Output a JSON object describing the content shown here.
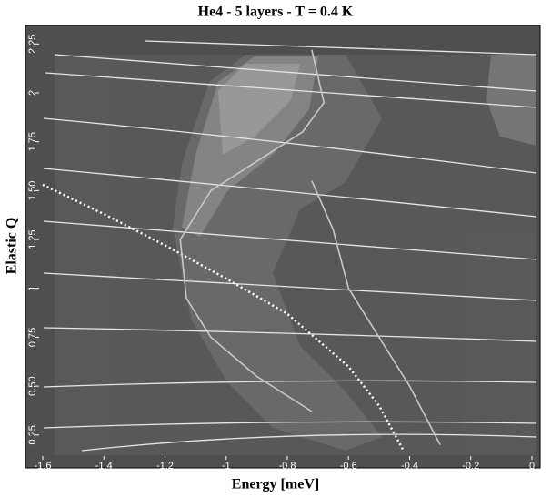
{
  "chart_data": {
    "type": "line",
    "title": "He4 - 5 layers - T = 0.4 K",
    "x_label": "Energy [meV]",
    "y_label": "Elastic Q",
    "xlim": [
      -1.6,
      0
    ],
    "ylim": [
      0.17,
      2.27
    ],
    "xticks": [
      -1.6,
      -1.4,
      -1.2,
      -1,
      -0.8,
      -0.6,
      -0.4,
      -0.2,
      0
    ],
    "yticks": [
      0.25,
      {
        "value": 0.5,
        "label": "0.50"
      },
      0.75,
      1,
      1.25,
      {
        "value": 1.5,
        "label": "1.50"
      },
      1.75,
      2,
      2.25
    ],
    "series": [
      {
        "color": "#ffffff",
        "style": "dotted",
        "x": [
          -1.6,
          -1.4,
          -1.2,
          -1.0,
          -0.8,
          -0.6,
          -0.5,
          -0.42
        ],
        "values": [
          1.53,
          1.38,
          1.22,
          1.05,
          0.87,
          0.6,
          0.4,
          0.17
        ]
      },
      {
        "color": "#c8c8c8",
        "style": "solid",
        "x": [
          -0.72,
          -0.68,
          -0.75,
          -0.88,
          -1.05,
          -1.15,
          -1.13,
          -1.05,
          -0.9,
          -0.72
        ],
        "values": [
          2.22,
          1.95,
          1.8,
          1.67,
          1.5,
          1.25,
          0.95,
          0.75,
          0.55,
          0.37
        ]
      },
      {
        "color": "#c8c8c8",
        "style": "solid",
        "x": [
          -0.72,
          -0.65,
          -0.6,
          -0.5,
          -0.4,
          -0.3
        ],
        "values": [
          1.55,
          1.3,
          1.0,
          0.75,
          0.5,
          0.2
        ]
      }
    ]
  }
}
